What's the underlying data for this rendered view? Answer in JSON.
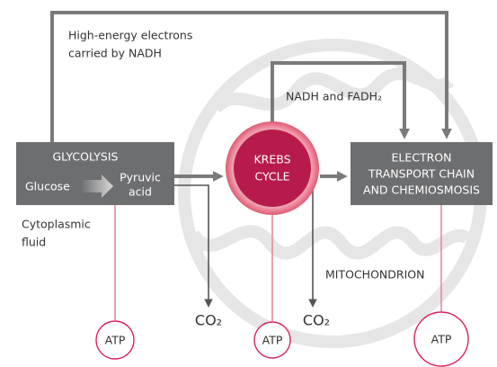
{
  "nadh_label": {
    "lines": [
      "High-energy electrons",
      "carried by NADH"
    ]
  },
  "nadh_fadh_label": "NADH and FADH₂",
  "glycolysis": {
    "title": "GLYCOLYSIS",
    "input": "Glucose",
    "output": {
      "lines": [
        "Pyruvic",
        "acid"
      ]
    }
  },
  "krebs": {
    "lines": [
      "KREBS",
      "CYCLE"
    ]
  },
  "etc": {
    "lines": [
      "ELECTRON",
      "TRANSPORT CHAIN",
      "AND CHEMIOSMOSIS"
    ]
  },
  "cytoplasm_label": {
    "lines": [
      "Cytoplasmic",
      "fluid"
    ]
  },
  "mitochondrion_label": "MITOCHONDRION",
  "products": {
    "co2": [
      "CO₂",
      "CO₂"
    ],
    "atp": [
      "ATP",
      "ATP",
      "ATP"
    ]
  }
}
